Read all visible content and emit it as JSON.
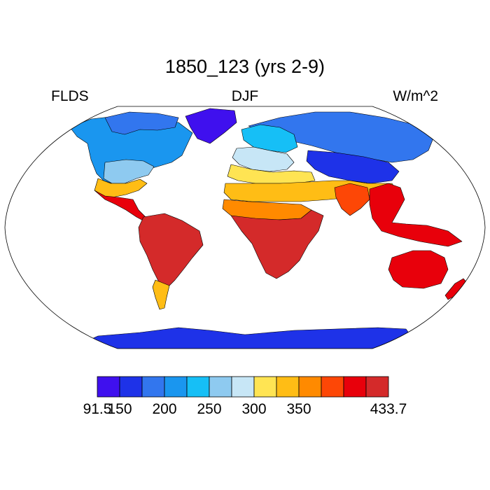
{
  "map": {
    "title": "1850_123 (yrs 2-9)",
    "left_string": "FLDS",
    "center_string": "DJF",
    "right_string": "W/m^2",
    "projection": "Robinson",
    "ocean_color": "#ffffff",
    "coastline_color": "#000000"
  },
  "colorbar": {
    "colors": [
      "#3f10ee",
      "#1e32e8",
      "#3276ee",
      "#1a96ef",
      "#16bff6",
      "#8ecaf0",
      "#c7e6f6",
      "#ffe453",
      "#ffbd15",
      "#ff8a00",
      "#fd4706",
      "#e8000b",
      "#d42a2a"
    ],
    "labels": [
      {
        "text": "91.5",
        "boundary": 0
      },
      {
        "text": "150",
        "boundary": 1
      },
      {
        "text": "200",
        "boundary": 3
      },
      {
        "text": "250",
        "boundary": 5
      },
      {
        "text": "300",
        "boundary": 7
      },
      {
        "text": "350",
        "boundary": 9
      },
      {
        "text": "433.7",
        "boundary": 13
      }
    ]
  },
  "regions": [
    {
      "name": "greenland",
      "level": 0
    },
    {
      "name": "arctic-canada",
      "level": 2
    },
    {
      "name": "canada",
      "level": 3
    },
    {
      "name": "eastern-north-america",
      "level": 5
    },
    {
      "name": "us-south",
      "level": 8
    },
    {
      "name": "mexico-central-america",
      "level": 11
    },
    {
      "name": "south-america",
      "level": 12
    },
    {
      "name": "patagonia",
      "level": 8
    },
    {
      "name": "siberia",
      "level": 2
    },
    {
      "name": "northern-europe",
      "level": 4
    },
    {
      "name": "central-asia",
      "level": 1
    },
    {
      "name": "europe",
      "level": 6
    },
    {
      "name": "mediterranean",
      "level": 7
    },
    {
      "name": "sahara-middle-east",
      "level": 8
    },
    {
      "name": "sahel",
      "level": 9
    },
    {
      "name": "africa",
      "level": 12
    },
    {
      "name": "india",
      "level": 10
    },
    {
      "name": "southeast-asia",
      "level": 11
    },
    {
      "name": "australia",
      "level": 11
    },
    {
      "name": "antarctica",
      "level": 1
    }
  ]
}
